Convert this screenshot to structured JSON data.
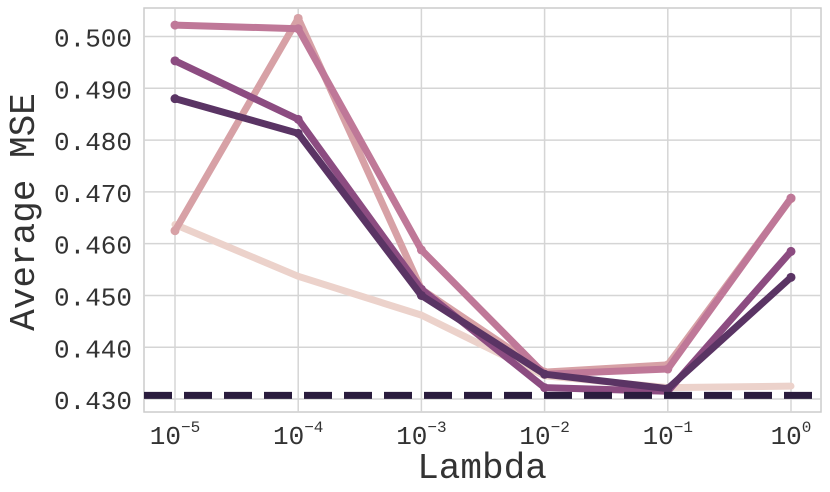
{
  "chart_data": {
    "type": "line",
    "xlabel": "Lambda",
    "ylabel": "Average MSE",
    "x_scale": "log",
    "x": [
      1e-05,
      0.0001,
      0.001,
      0.01,
      0.1,
      1
    ],
    "x_tick_labels": [
      {
        "base": "10",
        "exp": "−5"
      },
      {
        "base": "10",
        "exp": "−4"
      },
      {
        "base": "10",
        "exp": "−3"
      },
      {
        "base": "10",
        "exp": "−2"
      },
      {
        "base": "10",
        "exp": "−1"
      },
      {
        "base": "10",
        "exp": "0"
      }
    ],
    "y_ticks": [
      "0.430",
      "0.440",
      "0.450",
      "0.460",
      "0.470",
      "0.480",
      "0.490",
      "0.500"
    ],
    "ylim": [
      0.4275,
      0.5055
    ],
    "grid": true,
    "legend": "none",
    "baseline": {
      "y": 0.4307,
      "color": "#2a1c3d",
      "style": "dashed"
    },
    "series": [
      {
        "color": "#ecd2cb",
        "values": [
          0.4637,
          0.4537,
          0.4462,
          0.4345,
          0.4322,
          0.4325
        ],
        "markers": false
      },
      {
        "color": "#d7a1a6",
        "values": [
          0.4625,
          0.5035,
          0.4512,
          0.4352,
          0.4366,
          0.4687
        ],
        "markers": true
      },
      {
        "color": "#bf7898",
        "values": [
          0.5022,
          0.5015,
          0.4588,
          0.4348,
          0.4358,
          0.4688
        ],
        "markers": true
      },
      {
        "color": "#8c4c81",
        "values": [
          0.4953,
          0.484,
          0.4512,
          0.4322,
          0.4315,
          0.4585
        ],
        "markers": true
      },
      {
        "color": "#5a3464",
        "values": [
          0.488,
          0.4813,
          0.45,
          0.4348,
          0.432,
          0.4535
        ],
        "markers": true
      }
    ]
  }
}
